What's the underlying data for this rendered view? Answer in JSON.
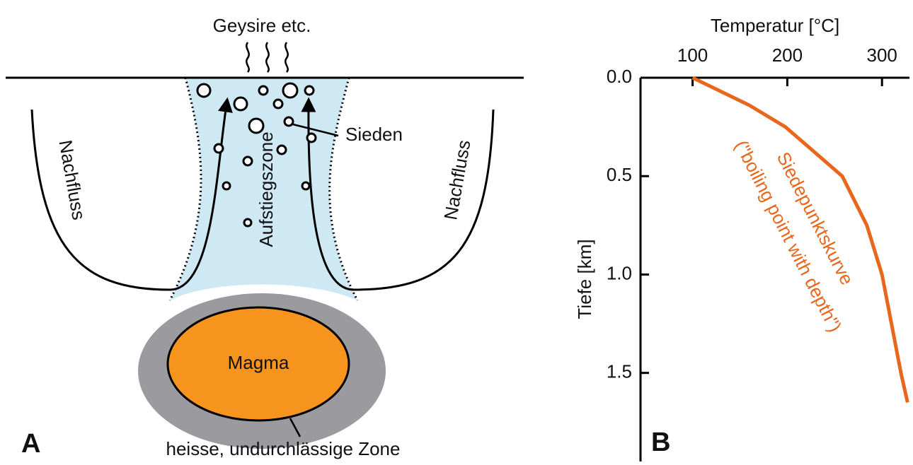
{
  "panel_a": {
    "label": "A",
    "geysers": "Geysire etc.",
    "boiling": "Sieden",
    "inflow_left": "Nachfluss",
    "inflow_right": "Nachfluss",
    "ascent_zone": "Aufstiegszone",
    "magma": "Magma",
    "hot_zone": "heisse, undurchlässige Zone"
  },
  "chart_data": {
    "type": "line",
    "panel_label": "B",
    "x_label": "Temperatur [°C]",
    "y_label": "Tiefe [km]",
    "annotation": "Siedepunktskurve",
    "annotation_sub": "(\"boiling point with depth\")",
    "xlim": [
      45,
      329
    ],
    "xticks": [
      100,
      200,
      300
    ],
    "ylim": [
      0,
      1.95
    ],
    "yticks": [
      {
        "value": 0,
        "label": "0.0"
      },
      0.5,
      {
        "value": 1,
        "label": "1.0"
      },
      1.5
    ],
    "inverted_y": true,
    "series": [
      {
        "color": "#e8671c",
        "x": [
          100,
          160,
          198,
          258,
          284,
          300,
          320,
          327
        ],
        "values": [
          0,
          0.14,
          0.25,
          0.5,
          0.75,
          1.0,
          1.5,
          1.65
        ]
      }
    ]
  }
}
